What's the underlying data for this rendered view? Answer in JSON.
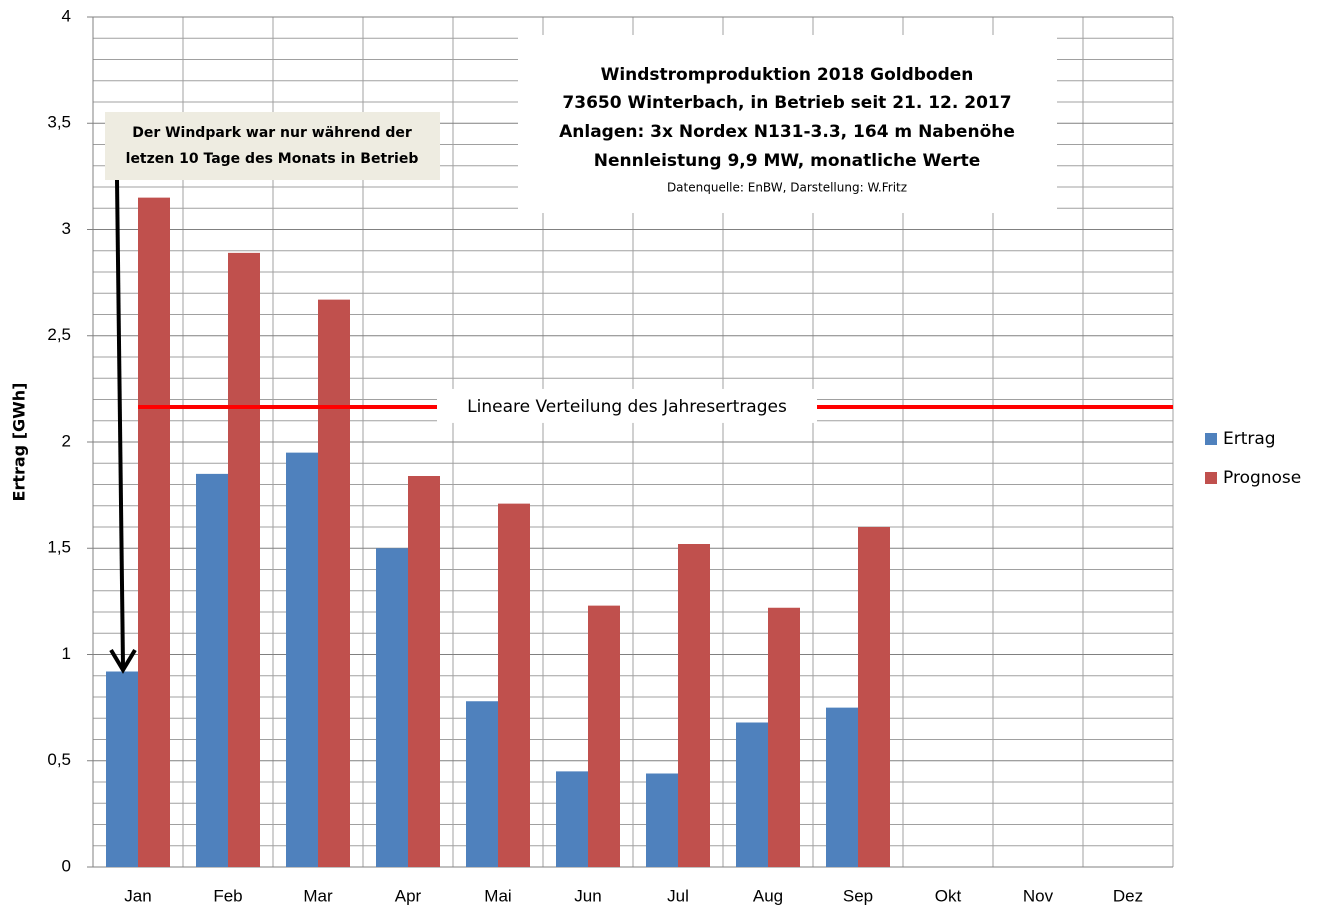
{
  "chart_data": {
    "type": "bar",
    "title": [
      "Windstromproduktion   2018 Goldboden",
      "73650 Winterbach, in Betrieb seit 21. 12. 2017",
      "Anlagen: 3x Nordex N131-3.3, 164 m Nabenöhe",
      "Nennleistung 9,9 MW, monatliche Werte"
    ],
    "subtitle": "Datenquelle: EnBW, Darstellung: W.Fritz",
    "annotation": [
      "Der Windpark war nur  während der",
      "letzen 10 Tage des Monats in Betrieb"
    ],
    "y_label": "Ertrag [GWh]",
    "categories": [
      "Jan",
      "Feb",
      "Mar",
      "Apr",
      "Mai",
      "Jun",
      "Jul",
      "Aug",
      "Sep",
      "Okt",
      "Nov",
      "Dez"
    ],
    "series": [
      {
        "name": "Ertrag",
        "color": "#4f81bd",
        "values": [
          0.92,
          1.85,
          1.95,
          1.5,
          0.78,
          0.45,
          0.44,
          0.68,
          0.75,
          null,
          null,
          null
        ]
      },
      {
        "name": "Prognose",
        "color": "#c0504d",
        "values": [
          3.15,
          2.89,
          2.67,
          1.84,
          1.71,
          1.23,
          1.52,
          1.22,
          1.6,
          null,
          null,
          null
        ]
      }
    ],
    "reference_line": {
      "value": 2.165,
      "label": "Lineare Verteilung des Jahresertrages",
      "color": "#ff0000"
    },
    "ylim": [
      0,
      4
    ],
    "yticks": [
      0,
      {
        "value": 0.5,
        "label": "0,5"
      },
      1,
      {
        "value": 1.5,
        "label": "1,5"
      },
      2,
      {
        "value": 2.5,
        "label": "2,5"
      },
      3,
      {
        "value": 3.5,
        "label": "3,5"
      },
      4
    ],
    "minor_yticks": [
      0.1,
      0.2,
      0.3,
      0.4,
      0.6,
      0.7,
      0.8,
      0.9,
      1.1,
      1.2,
      1.3,
      1.4,
      1.6,
      1.7,
      1.8,
      1.9,
      2.1,
      2.2,
      2.3,
      2.4,
      2.6,
      2.7,
      2.8,
      2.9,
      3.1,
      3.2,
      3.3,
      3.4,
      3.6,
      3.7,
      3.8,
      3.9
    ],
    "grid": true,
    "legend": "right"
  }
}
